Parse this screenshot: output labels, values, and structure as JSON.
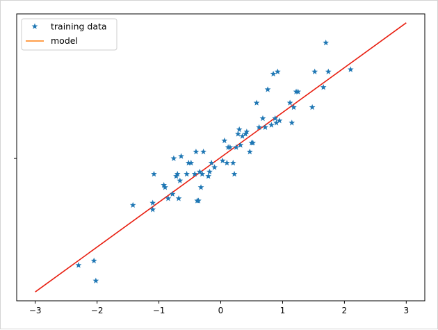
{
  "chart_data": {
    "type": "scatter",
    "title": "",
    "xlabel": "",
    "ylabel": "",
    "xlim": [
      -3.3,
      3.3
    ],
    "ylim": [
      -6.4,
      6.5
    ],
    "x_ticks": [
      -3,
      -2,
      -1,
      0,
      1,
      2,
      3
    ],
    "x_tick_labels": [
      "−3",
      "−2",
      "−1",
      "0",
      "1",
      "2",
      "3"
    ],
    "y_ticks": [
      0
    ],
    "y_tick_labels": [
      ""
    ],
    "grid": false,
    "legend": {
      "placement": "top-left"
    },
    "series": [
      {
        "name": "training data",
        "kind": "scatter",
        "marker": "star",
        "color": "#1f77b4",
        "x": [
          -2.3,
          -2.05,
          -2.02,
          -1.42,
          -1.1,
          -1.1,
          -1.08,
          -0.92,
          -0.9,
          -0.85,
          -0.78,
          -0.76,
          -0.72,
          -0.7,
          -0.68,
          -0.66,
          -0.64,
          -0.55,
          -0.52,
          -0.48,
          -0.42,
          -0.4,
          -0.38,
          -0.36,
          -0.34,
          -0.32,
          -0.3,
          -0.28,
          -0.2,
          -0.18,
          -0.15,
          -0.1,
          0.03,
          0.06,
          0.1,
          0.12,
          0.15,
          0.2,
          0.22,
          0.25,
          0.28,
          0.3,
          0.32,
          0.35,
          0.4,
          0.42,
          0.47,
          0.5,
          0.52,
          0.58,
          0.62,
          0.68,
          0.72,
          0.76,
          0.82,
          0.85,
          0.88,
          0.9,
          0.92,
          0.95,
          1.12,
          1.15,
          1.18,
          1.22,
          1.25,
          1.48,
          1.52,
          1.66,
          1.7,
          1.74,
          2.1
        ],
        "y": [
          -4.8,
          -4.6,
          -5.5,
          -2.1,
          -2.0,
          -2.3,
          -0.7,
          -1.2,
          -1.3,
          -1.8,
          -1.6,
          0.0,
          -0.8,
          -0.7,
          -1.8,
          -1.0,
          0.1,
          -0.7,
          -0.2,
          -0.2,
          -0.7,
          0.3,
          -1.9,
          -1.9,
          -0.6,
          -1.3,
          -0.7,
          0.3,
          -0.8,
          -0.6,
          -0.2,
          -0.4,
          -0.1,
          0.8,
          -0.2,
          0.5,
          0.5,
          -0.2,
          -0.7,
          0.5,
          1.1,
          1.3,
          0.6,
          1.0,
          1.1,
          1.2,
          0.3,
          0.7,
          0.7,
          2.5,
          1.4,
          1.8,
          1.4,
          3.1,
          1.5,
          3.8,
          1.8,
          1.6,
          3.9,
          1.7,
          2.5,
          1.6,
          2.3,
          3.0,
          3.0,
          2.3,
          3.9,
          3.2,
          5.2,
          3.9,
          4.0
        ]
      },
      {
        "name": "model",
        "kind": "line",
        "color": "#ff7f0e",
        "display_color": "#e81e10",
        "x": [
          -3,
          3
        ],
        "y": [
          -6.0,
          6.1
        ]
      }
    ]
  }
}
